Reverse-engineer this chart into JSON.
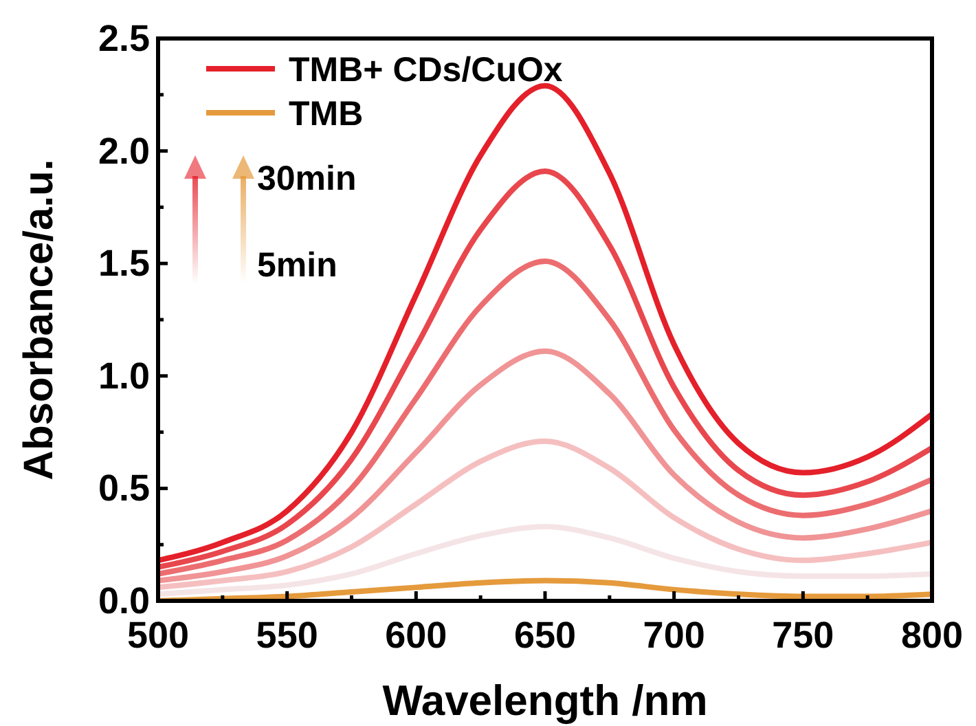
{
  "chart_data": {
    "type": "line",
    "xlabel": "Wavelength /nm",
    "ylabel": "Absorbance/a.u.",
    "x": [
      500,
      525,
      550,
      575,
      600,
      625,
      650,
      675,
      700,
      725,
      750,
      775,
      800
    ],
    "series": [
      {
        "name": "TMB+ CDs/CuOx",
        "color": "#e4202a",
        "values": [
          0.18,
          0.26,
          0.4,
          0.75,
          1.36,
          1.98,
          2.29,
          1.9,
          1.14,
          0.7,
          0.57,
          0.64,
          0.83
        ]
      },
      {
        "color": "#e8474d",
        "values": [
          0.15,
          0.22,
          0.34,
          0.63,
          1.13,
          1.65,
          1.91,
          1.58,
          0.95,
          0.58,
          0.47,
          0.53,
          0.68
        ]
      },
      {
        "color": "#ec6d70",
        "values": [
          0.12,
          0.18,
          0.27,
          0.5,
          0.9,
          1.31,
          1.51,
          1.25,
          0.76,
          0.47,
          0.38,
          0.43,
          0.54
        ]
      },
      {
        "color": "#f09496",
        "values": [
          0.09,
          0.13,
          0.2,
          0.37,
          0.66,
          0.96,
          1.11,
          0.92,
          0.56,
          0.35,
          0.28,
          0.32,
          0.4
        ]
      },
      {
        "color": "#f5bfc0",
        "values": [
          0.06,
          0.09,
          0.13,
          0.24,
          0.43,
          0.62,
          0.71,
          0.59,
          0.37,
          0.23,
          0.18,
          0.21,
          0.26
        ]
      },
      {
        "color": "#f5e4e6",
        "values": [
          0.03,
          0.05,
          0.07,
          0.12,
          0.21,
          0.29,
          0.33,
          0.28,
          0.19,
          0.13,
          0.11,
          0.11,
          0.12
        ]
      },
      {
        "name": "TMB",
        "color": "#e59a3c",
        "values": [
          0.0,
          0.01,
          0.02,
          0.04,
          0.06,
          0.08,
          0.09,
          0.08,
          0.05,
          0.03,
          0.02,
          0.02,
          0.03
        ]
      }
    ],
    "xlim": [
      500,
      800
    ],
    "xticks": [
      500,
      {
        "value": 525,
        "label": null
      },
      550,
      {
        "value": 575,
        "label": null
      },
      600,
      {
        "value": 625,
        "label": null
      },
      650,
      {
        "value": 675,
        "label": null
      },
      700,
      {
        "value": 725,
        "label": null
      },
      750,
      {
        "value": 775,
        "label": null
      },
      800
    ],
    "ylim": [
      0,
      2.5
    ],
    "yticks": [
      {
        "value": 0,
        "label": "0.0"
      },
      {
        "value": 0.25,
        "label": null
      },
      0.5,
      {
        "value": 0.75,
        "label": null
      },
      {
        "value": 1,
        "label": "1.0"
      },
      {
        "value": 1.25,
        "label": null
      },
      1.5,
      {
        "value": 1.75,
        "label": null
      },
      {
        "value": 2,
        "label": "2.0"
      },
      {
        "value": 2.25,
        "label": null
      },
      2.5
    ],
    "legend": "top left",
    "grid": false,
    "marker": "none",
    "line_style": "solid",
    "annotations": [
      "30min",
      "5min"
    ]
  }
}
